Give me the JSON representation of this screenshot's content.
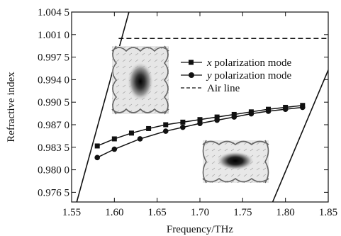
{
  "chart_data": {
    "type": "line",
    "title": "",
    "xlabel": "Frequency/THz",
    "ylabel": "Refractive index",
    "xlim": [
      1.55,
      1.85
    ],
    "ylim": [
      0.975,
      1.0045
    ],
    "x_ticks": [
      1.55,
      1.6,
      1.65,
      1.7,
      1.75,
      1.8,
      1.85
    ],
    "x_tick_labels": [
      "1.55",
      "1.60",
      "1.65",
      "1.70",
      "1.75",
      "1.80",
      "1.85"
    ],
    "y_ticks": [
      0.9765,
      0.98,
      0.9835,
      0.987,
      0.9905,
      0.994,
      0.9975,
      1.001,
      1.0045
    ],
    "y_tick_labels": [
      "0.976 5",
      "0.980 0",
      "0.983 5",
      "0.987 0",
      "0.990 5",
      "0.994 0",
      "0.997 5",
      "1.001 0",
      "1.004 5"
    ],
    "legend_position": "top-right",
    "grid": false,
    "series": [
      {
        "name": "x polarization mode",
        "name_italic": "x",
        "name_rest": " polarization mode",
        "marker": "square",
        "color": "#111111",
        "x": [
          1.58,
          1.6,
          1.62,
          1.64,
          1.66,
          1.68,
          1.7,
          1.72,
          1.74,
          1.76,
          1.78,
          1.8,
          1.82
        ],
        "y": [
          0.9837,
          0.9848,
          0.9857,
          0.9864,
          0.987,
          0.9874,
          0.9878,
          0.9882,
          0.9886,
          0.989,
          0.9894,
          0.9897,
          0.99
        ]
      },
      {
        "name": "y polarization mode",
        "name_italic": "y",
        "name_rest": " polarization mode",
        "marker": "circle",
        "color": "#111111",
        "x": [
          1.58,
          1.6,
          1.63,
          1.66,
          1.68,
          1.7,
          1.72,
          1.74,
          1.76,
          1.78,
          1.8,
          1.82
        ],
        "y": [
          0.9819,
          0.9832,
          0.9848,
          0.986,
          0.9866,
          0.9872,
          0.9877,
          0.9882,
          0.9887,
          0.9891,
          0.9894,
          0.9897
        ]
      }
    ],
    "reference_lines": [
      {
        "name": "Air line",
        "style": "dashed",
        "y": 1.0004,
        "x_range": [
          1.605,
          1.85
        ]
      }
    ],
    "light_lines": [
      {
        "x": [
          1.556,
          1.617
        ],
        "y": [
          0.975,
          1.0045
        ]
      },
      {
        "x": [
          1.785,
          1.85
        ],
        "y": [
          0.975,
          0.9955
        ]
      }
    ],
    "insets": [
      {
        "name": "x-mode-field-profile",
        "position": "upper-left"
      },
      {
        "name": "y-mode-field-profile",
        "position": "lower-right"
      }
    ]
  }
}
